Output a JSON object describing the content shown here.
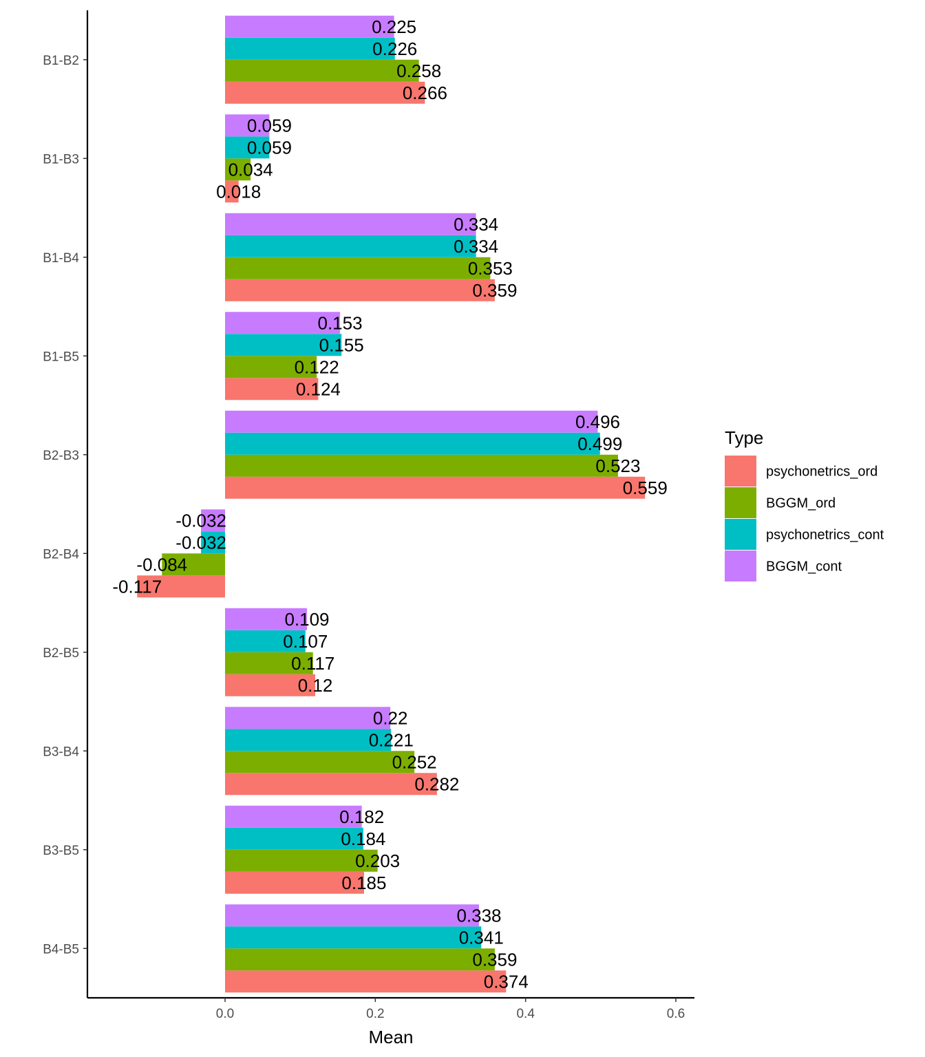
{
  "chart_data": {
    "type": "bar",
    "orientation": "horizontal",
    "grouped": true,
    "xlabel": "Mean",
    "ylabel": "",
    "xlim": [
      -0.184,
      0.625
    ],
    "x_ticks": [
      0.0,
      0.2,
      0.4,
      0.6
    ],
    "x_tick_labels": [
      "0.0",
      "0.2",
      "0.4",
      "0.6"
    ],
    "grid": false,
    "legend": {
      "title": "Type",
      "position": "right"
    },
    "categories": [
      "B1-B2",
      "B1-B3",
      "B1-B4",
      "B1-B5",
      "B2-B3",
      "B2-B4",
      "B2-B5",
      "B3-B4",
      "B3-B5",
      "B4-B5"
    ],
    "series": [
      {
        "name": "psychonetrics_ord",
        "color": "#F8766D",
        "values": [
          0.266,
          0.018,
          0.359,
          0.124,
          0.559,
          -0.117,
          0.12,
          0.282,
          0.185,
          0.374
        ],
        "labels": [
          "0.266",
          "0.018",
          "0.359",
          "0.124",
          "0.559",
          "-0.117",
          "0.12",
          "0.282",
          "0.185",
          "0.374"
        ]
      },
      {
        "name": "BGGM_ord",
        "color": "#7CAE00",
        "values": [
          0.258,
          0.034,
          0.353,
          0.122,
          0.523,
          -0.084,
          0.117,
          0.252,
          0.203,
          0.359
        ],
        "labels": [
          "0.258",
          "0.034",
          "0.353",
          "0.122",
          "0.523",
          "-0.084",
          "0.117",
          "0.252",
          "0.203",
          "0.359"
        ]
      },
      {
        "name": "psychonetrics_cont",
        "color": "#00BFC4",
        "values": [
          0.226,
          0.059,
          0.334,
          0.155,
          0.499,
          -0.032,
          0.107,
          0.221,
          0.184,
          0.341
        ],
        "labels": [
          "0.226",
          "0.059",
          "0.334",
          "0.155",
          "0.499",
          "-0.032",
          "0.107",
          "0.221",
          "0.184",
          "0.341"
        ]
      },
      {
        "name": "BGGM_cont",
        "color": "#C77CFF",
        "values": [
          0.225,
          0.059,
          0.334,
          0.153,
          0.496,
          -0.032,
          0.109,
          0.22,
          0.182,
          0.338
        ],
        "labels": [
          "0.225",
          "0.059",
          "0.334",
          "0.153",
          "0.496",
          "-0.032",
          "0.109",
          "0.22",
          "0.182",
          "0.338"
        ]
      }
    ]
  }
}
